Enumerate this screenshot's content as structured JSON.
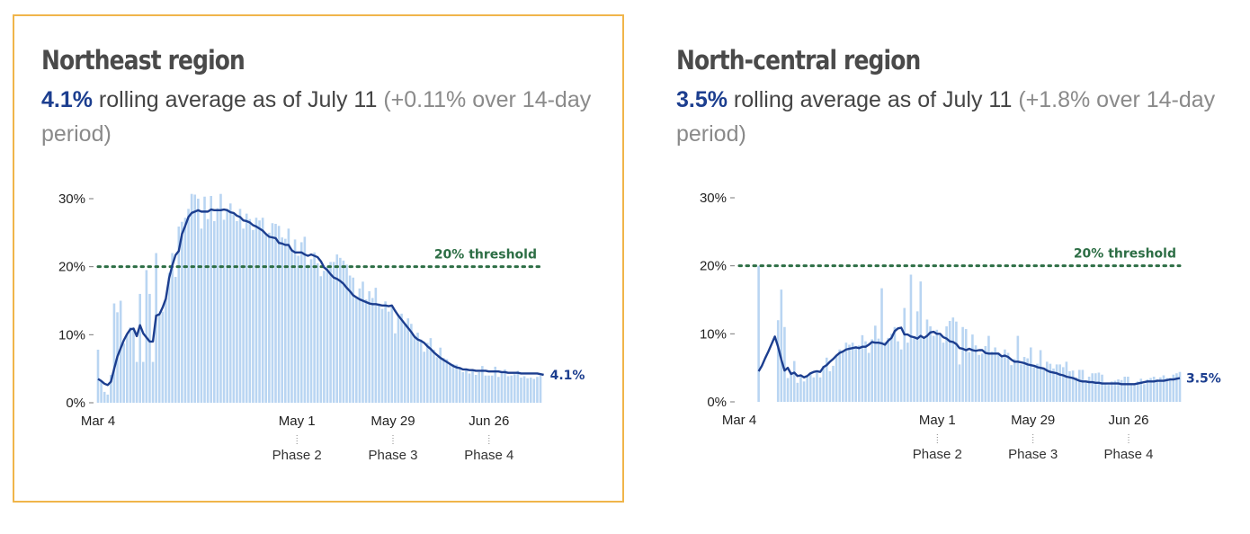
{
  "colors": {
    "bar": "#b9d5f2",
    "line": "#1c3e8f",
    "threshold": "#2d6e45",
    "highlight_border": "#f0b54a"
  },
  "panels": [
    {
      "title": "Northeast region",
      "value_text": "4.1%",
      "summary_text": " rolling average as of July 11 ",
      "change_text": "(+0.11% over 14-day period)"
    },
    {
      "title": "North-central region",
      "value_text": "3.5%",
      "summary_text": " rolling average as of July 11 ",
      "change_text": "(+1.8% over 14-day period)"
    }
  ],
  "chart_data": [
    {
      "type": "bar",
      "region": "Northeast region",
      "x_start": "Mar 4",
      "x_end": "Jul 11",
      "ylim": [
        0,
        30
      ],
      "yticks": [
        "0%",
        "10%",
        "20%",
        "30%"
      ],
      "xticks": [
        "Mar 4",
        "May 1",
        "May 29",
        "Jun 26"
      ],
      "phases": [
        {
          "date": "May 1",
          "label": "Phase 2"
        },
        {
          "date": "May 29",
          "label": "Phase 3"
        },
        {
          "date": "Jun 26",
          "label": "Phase 4"
        }
      ],
      "threshold": {
        "value": 20,
        "label": "20% threshold"
      },
      "end_label": "4.1%",
      "series": [
        {
          "name": "daily",
          "values": [
            7.8,
            3.2,
            1.6,
            1.2,
            4.1,
            14.6,
            13.3,
            15,
            8.7,
            10.1,
            11.1,
            10.9,
            6,
            16,
            6,
            19.5,
            16,
            6,
            22,
            13,
            13.4,
            15.3,
            19.1,
            22,
            18.5,
            25.9,
            26.6,
            27.2,
            28.5,
            30.7,
            30.6,
            30,
            25.6,
            30.3,
            27,
            30.4,
            26.7,
            28.6,
            30.7,
            26.9,
            28.5,
            29.3,
            27.8,
            26.7,
            28.5,
            25.6,
            27.8,
            27,
            25.4,
            27.2,
            26.8,
            27.2,
            24.8,
            25,
            26.4,
            26.3,
            26,
            24.3,
            24.1,
            25.6,
            22.6,
            24,
            21.6,
            23.6,
            24.4,
            20.3,
            21.1,
            22.1,
            20.5,
            18.6,
            19.4,
            20,
            20.7,
            20.7,
            21.8,
            21.3,
            20.9,
            20.3,
            18.7,
            18.4,
            15.5,
            16.8,
            17.8,
            15.2,
            16.4,
            15.4,
            16.9,
            14.6,
            13.8,
            14.9,
            13.4,
            14.3,
            10.2,
            13,
            13.1,
            11.5,
            12.4,
            11.6,
            9.9,
            10.3,
            9.3,
            7.5,
            8.8,
            9.5,
            7.8,
            6.7,
            8.1,
            6.6,
            6.4,
            5.7,
            5.7,
            5.6,
            5.2,
            4.5,
            5,
            4.3,
            4.7,
            4.1,
            4.5,
            5.4,
            4,
            4,
            4,
            5.3,
            3.8,
            4.5,
            4.9,
            3.9,
            4,
            4.2,
            4.7,
            3.7,
            3.9,
            3.6,
            3.7,
            3.5,
            3.8,
            4
          ]
        },
        {
          "name": "rolling average",
          "values": [
            3.5,
            3.2,
            2.8,
            2.6,
            3.1,
            5,
            6.8,
            8,
            9.2,
            10.1,
            10.8,
            10.9,
            9.8,
            11.4,
            10.2,
            9.6,
            9,
            9,
            12.8,
            13,
            14,
            15.3,
            18.3,
            20.2,
            21.7,
            22.3,
            24.8,
            26,
            27.3,
            27.9,
            28.1,
            28.3,
            28.1,
            28.1,
            28.1,
            28.4,
            28.3,
            28.3,
            28.3,
            28.4,
            28.3,
            28,
            27.9,
            27.5,
            27.3,
            26.8,
            26.7,
            26.5,
            26.1,
            25.9,
            25.6,
            25.3,
            24.8,
            24.4,
            24.3,
            24.2,
            23.5,
            23.4,
            23.2,
            23.2,
            22.4,
            22.1,
            22.1,
            22.1,
            21.8,
            21.6,
            21.8,
            21.6,
            21.4,
            20.8,
            19.9,
            19.5,
            18.9,
            18.4,
            18.2,
            17.9,
            17.5,
            16.9,
            16.4,
            15.8,
            15.5,
            15.2,
            15,
            14.8,
            14.6,
            14.5,
            14.5,
            14.4,
            14.3,
            14.3,
            14.2,
            14.3,
            13.5,
            12.8,
            12.2,
            11.6,
            11,
            10.4,
            9.7,
            9.3,
            9.1,
            8.8,
            8.3,
            7.9,
            7.4,
            7,
            6.6,
            6.3,
            6,
            5.7,
            5.4,
            5.2,
            5.1,
            4.9,
            4.9,
            4.8,
            4.8,
            4.7,
            4.7,
            4.7,
            4.7,
            4.6,
            4.6,
            4.6,
            4.6,
            4.5,
            4.5,
            4.4,
            4.4,
            4.4,
            4.4,
            4.3,
            4.3,
            4.3,
            4.3,
            4.3,
            4.3,
            4.2,
            4.1
          ]
        }
      ]
    },
    {
      "type": "bar",
      "region": "North-central region",
      "x_start": "Mar 4",
      "x_end": "Jul 11",
      "ylim": [
        0,
        30
      ],
      "yticks": [
        "0%",
        "10%",
        "20%",
        "30%"
      ],
      "xticks": [
        "Mar 4",
        "May 1",
        "May 29",
        "Jun 26"
      ],
      "phases": [
        {
          "date": "May 1",
          "label": "Phase 2"
        },
        {
          "date": "May 29",
          "label": "Phase 3"
        },
        {
          "date": "Jun 26",
          "label": "Phase 4"
        }
      ],
      "threshold": {
        "value": 20,
        "label": "20% threshold"
      },
      "end_label": "3.5%",
      "series": [
        {
          "name": "daily",
          "values": [
            0,
            0,
            0,
            0,
            0,
            0,
            20,
            0,
            0,
            0,
            0,
            0,
            12,
            16.5,
            11,
            3.5,
            4.4,
            6,
            2.8,
            4,
            3,
            3.9,
            4.3,
            3.6,
            4.3,
            3.6,
            5.3,
            6.5,
            4.5,
            5.3,
            6.8,
            7.7,
            7.5,
            8.7,
            8.4,
            8.7,
            8.2,
            8.3,
            9.8,
            8.9,
            7.2,
            9.2,
            11.2,
            9.3,
            16.7,
            8.8,
            9.4,
            10,
            11,
            8.9,
            7.7,
            13.8,
            8.7,
            18.7,
            9.4,
            13.3,
            17.7,
            9.5,
            12.1,
            11.1,
            9.7,
            10.6,
            9.8,
            8.7,
            11.1,
            11.9,
            12.4,
            11.8,
            5.5,
            11,
            10.7,
            7.3,
            9.9,
            8.3,
            6.9,
            7.1,
            8.2,
            9.7,
            7.4,
            8,
            7.2,
            6.6,
            7.7,
            7.2,
            5.4,
            6.3,
            9.7,
            5.5,
            6.6,
            6.4,
            8,
            5.1,
            5.6,
            7.6,
            4.9,
            5.9,
            5.6,
            4.9,
            5.5,
            5.5,
            5.1,
            5.9,
            4.5,
            4.6,
            3.6,
            4.7,
            4.7,
            3,
            3.7,
            4.2,
            4.2,
            4.3,
            4,
            2.6,
            2.5,
            3,
            3.1,
            3.3,
            3.2,
            3.7,
            3.7,
            2.7,
            2.5,
            3,
            3.4,
            2.6,
            3.3,
            3.5,
            3.7,
            3.3,
            3.6,
            3.9,
            3.5,
            3.5,
            4,
            4.2,
            4.4
          ]
        },
        {
          "name": "rolling average",
          "values": [
            null,
            null,
            null,
            null,
            null,
            null,
            4.5,
            5.3,
            6.4,
            7.4,
            8.5,
            9.6,
            8.1,
            6.2,
            4.6,
            5,
            4.1,
            4.3,
            3.8,
            3.9,
            3.6,
            3.8,
            4.2,
            4.4,
            4.5,
            4.4,
            5.1,
            5.4,
            5.9,
            6.3,
            6.8,
            7.2,
            7.4,
            7.7,
            7.8,
            7.9,
            8,
            7.9,
            8.1,
            8.1,
            8.4,
            8.8,
            8.7,
            8.7,
            8.6,
            8.4,
            9,
            9.4,
            10.4,
            10.8,
            10.9,
            9.9,
            9.9,
            9.6,
            9.5,
            9.3,
            9.7,
            9.4,
            9.7,
            10.2,
            10.3,
            10,
            10,
            9.5,
            9.3,
            8.9,
            8.8,
            8.5,
            7.9,
            7.8,
            7.6,
            7.8,
            7.6,
            7.5,
            7.6,
            7.6,
            7.2,
            7.1,
            7.1,
            7.1,
            7.1,
            6.7,
            6.8,
            6.6,
            6.2,
            5.9,
            5.9,
            5.8,
            5.7,
            5.5,
            5.4,
            5.3,
            5.1,
            5,
            4.9,
            4.6,
            4.4,
            4.3,
            4.2,
            4,
            3.9,
            3.7,
            3.6,
            3.5,
            3.3,
            3.1,
            3,
            3,
            2.9,
            2.9,
            2.8,
            2.8,
            2.7,
            2.7,
            2.7,
            2.7,
            2.7,
            2.7,
            2.6,
            2.6,
            2.6,
            2.6,
            2.6,
            2.7,
            2.8,
            2.9,
            3,
            3,
            3,
            3.1,
            3.1,
            3.1,
            3.2,
            3.3,
            3.3,
            3.4,
            3.5
          ]
        }
      ]
    }
  ]
}
